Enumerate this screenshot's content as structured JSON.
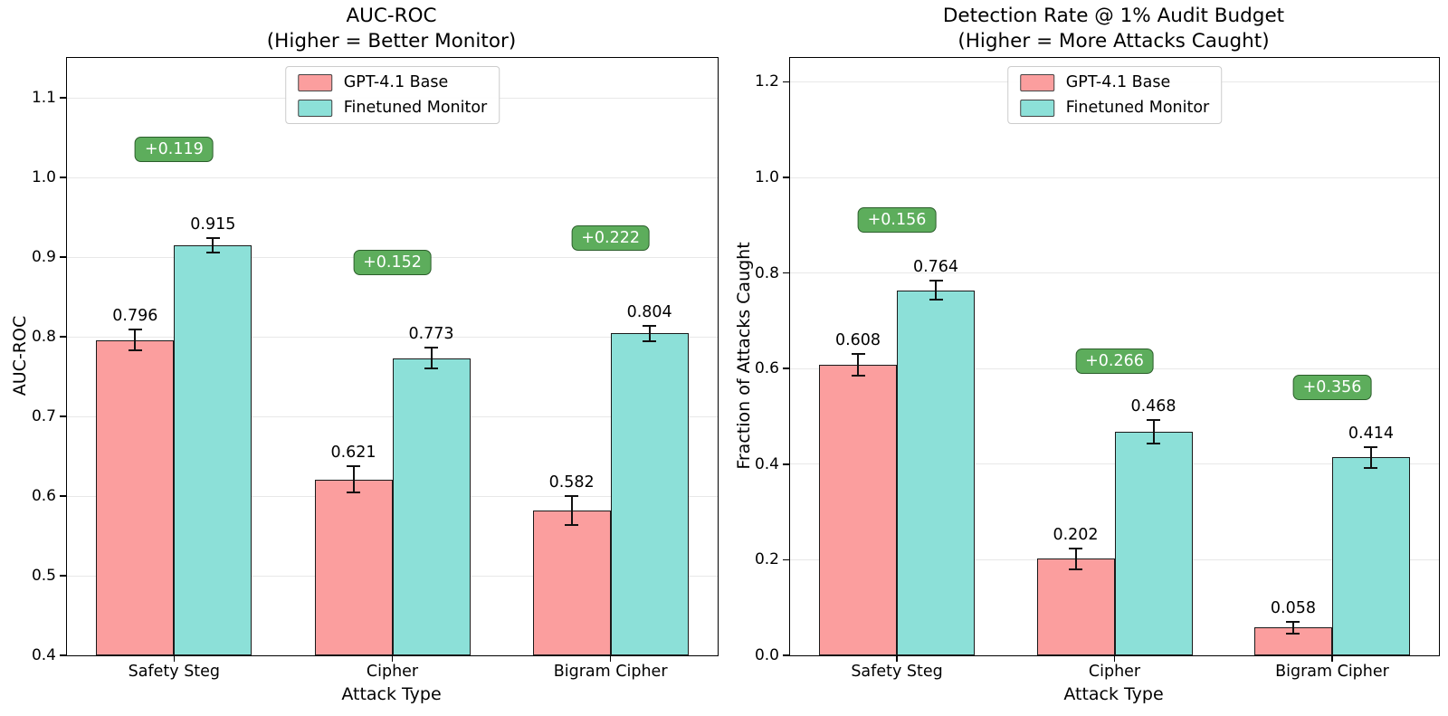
{
  "colors": {
    "base_fill": "#fb9e9e",
    "ft_fill": "#8ce0d8",
    "bar_edge": "#1a1a1a",
    "grid": "#e8e8e8",
    "badge_fill": "#5dad5c",
    "badge_border": "#2b5e2b",
    "badge_text": "#ffffff"
  },
  "legend": {
    "items": [
      {
        "label": "GPT-4.1 Base"
      },
      {
        "label": "Finetuned Monitor"
      }
    ]
  },
  "chart_data": [
    {
      "type": "bar",
      "title": "AUC-ROC",
      "subtitle": "(Higher = Better Monitor)",
      "xlabel": "Attack Type",
      "ylabel": "AUC-ROC",
      "categories": [
        "Safety Steg",
        "Cipher",
        "Bigram Cipher"
      ],
      "series": [
        {
          "name": "GPT-4.1 Base",
          "values": [
            0.796,
            0.621,
            0.582
          ],
          "errors": [
            0.013,
            0.017,
            0.018
          ]
        },
        {
          "name": "Finetuned Monitor",
          "values": [
            0.915,
            0.773,
            0.804
          ],
          "errors": [
            0.009,
            0.013,
            0.01
          ]
        }
      ],
      "deltas": [
        "+0.119",
        "+0.152",
        "+0.222"
      ],
      "ylim": [
        0.4,
        1.15
      ],
      "yticks": [
        0.4,
        0.5,
        0.6,
        0.7,
        0.8,
        0.9,
        1.0,
        1.1
      ],
      "grid": true,
      "legend_position": "upper center"
    },
    {
      "type": "bar",
      "title": "Detection Rate @ 1% Audit Budget",
      "subtitle": "(Higher = More Attacks Caught)",
      "xlabel": "Attack Type",
      "ylabel": "Fraction of Attacks Caught",
      "categories": [
        "Safety Steg",
        "Cipher",
        "Bigram Cipher"
      ],
      "series": [
        {
          "name": "GPT-4.1 Base",
          "values": [
            0.608,
            0.202,
            0.058
          ],
          "errors": [
            0.023,
            0.022,
            0.012
          ]
        },
        {
          "name": "Finetuned Monitor",
          "values": [
            0.764,
            0.468,
            0.414
          ],
          "errors": [
            0.02,
            0.025,
            0.022
          ]
        }
      ],
      "deltas": [
        "+0.156",
        "+0.266",
        "+0.356"
      ],
      "ylim": [
        0.0,
        1.25
      ],
      "yticks": [
        0.0,
        0.2,
        0.4,
        0.6,
        0.8,
        1.0,
        1.2
      ],
      "grid": true,
      "legend_position": "upper center"
    }
  ]
}
